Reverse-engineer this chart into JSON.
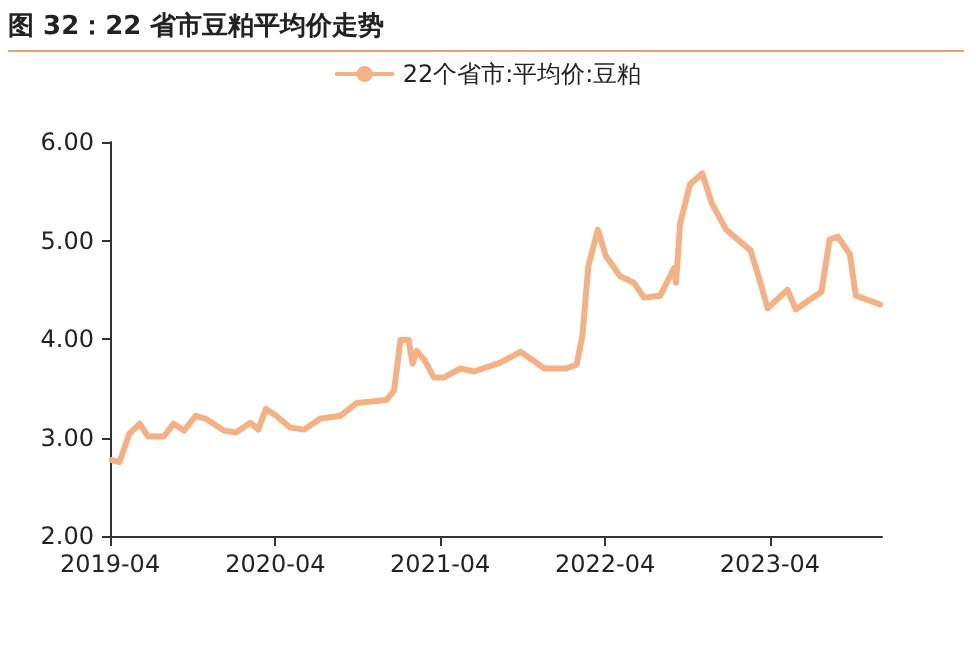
{
  "chart_data": {
    "type": "line",
    "title": "图 32：22 省市豆粕平均价走势",
    "legend": "top",
    "marker": "none",
    "line_style": "solid",
    "grid": false,
    "x": [
      "2019-04-05",
      "2019-04-22",
      "2019-05-14",
      "2019-06-06",
      "2019-06-24",
      "2019-07-29",
      "2019-08-20",
      "2019-09-12",
      "2019-10-08",
      "2019-10-30",
      "2019-12-09",
      "2020-01-05",
      "2020-02-06",
      "2020-02-23",
      "2020-03-11",
      "2020-04-03",
      "2020-05-04",
      "2020-06-04",
      "2020-07-09",
      "2020-08-23",
      "2020-09-28",
      "2020-12-03",
      "2020-12-20",
      "2021-01-03",
      "2021-01-21",
      "2021-01-30",
      "2021-02-08",
      "2021-02-26",
      "2021-03-18",
      "2021-04-10",
      "2021-05-15",
      "2021-06-15",
      "2021-08-12",
      "2021-09-26",
      "2021-11-18",
      "2022-01-05",
      "2022-01-28",
      "2022-02-10",
      "2022-02-23",
      "2022-03-16",
      "2022-04-03",
      "2022-05-04",
      "2022-06-04",
      "2022-06-26",
      "2022-08-01",
      "2022-09-01",
      "2022-09-05",
      "2022-09-14",
      "2022-10-06",
      "2022-11-02",
      "2022-11-24",
      "2022-12-25",
      "2023-02-17",
      "2023-03-09",
      "2023-03-27",
      "2023-04-14",
      "2023-05-10",
      "2023-05-28",
      "2023-06-19",
      "2023-07-24",
      "2023-08-11",
      "2023-08-29",
      "2023-09-25",
      "2023-10-08",
      "2023-12-01"
    ],
    "series": [
      {
        "name": "22个省市:平均价:豆粕",
        "color": "#f4b183",
        "values": [
          2.77,
          2.75,
          3.04,
          3.14,
          3.01,
          3.01,
          3.14,
          3.07,
          3.22,
          3.19,
          3.07,
          3.05,
          3.15,
          3.08,
          3.29,
          3.22,
          3.1,
          3.08,
          3.19,
          3.22,
          3.35,
          3.38,
          3.48,
          3.99,
          3.99,
          3.75,
          3.88,
          3.78,
          3.61,
          3.61,
          3.7,
          3.67,
          3.76,
          3.87,
          3.7,
          3.7,
          3.74,
          4.04,
          4.74,
          5.11,
          4.84,
          4.64,
          4.57,
          4.42,
          4.44,
          4.72,
          4.57,
          5.17,
          5.57,
          5.68,
          5.37,
          5.11,
          4.9,
          4.6,
          4.31,
          4.39,
          4.5,
          4.3,
          4.37,
          4.48,
          5.01,
          5.04,
          4.86,
          4.44,
          4.35
        ]
      }
    ],
    "xlim": [
      "2019-04-01",
      "2023-12-05"
    ],
    "xticks": [
      "2019-04",
      "2020-04",
      "2021-04",
      "2022-04",
      "2023-04"
    ],
    "ylim": [
      2,
      6
    ],
    "yticks": [
      {
        "value": 2,
        "label": "2.00"
      },
      {
        "value": 3,
        "label": "3.00"
      },
      {
        "value": 4,
        "label": "4.00"
      },
      {
        "value": 5,
        "label": "5.00"
      },
      {
        "value": 6,
        "label": "6.00"
      }
    ]
  }
}
